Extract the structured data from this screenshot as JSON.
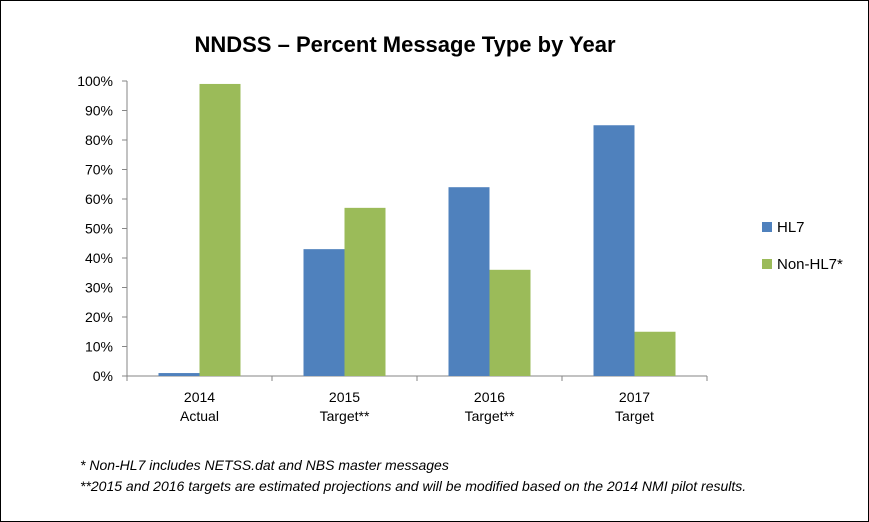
{
  "chart_data": {
    "type": "bar",
    "title": "NNDSS – Percent Message Type by Year",
    "categories": [
      [
        "2014",
        "Actual"
      ],
      [
        "2015",
        "Target**"
      ],
      [
        "2016",
        "Target**"
      ],
      [
        "2017",
        "Target"
      ]
    ],
    "series": [
      {
        "name": "HL7",
        "color": "#4f81bd",
        "values": [
          1,
          43,
          64,
          85
        ]
      },
      {
        "name": "Non-HL7*",
        "color": "#9bbb59",
        "values": [
          99,
          57,
          36,
          15
        ]
      }
    ],
    "ylim": [
      0,
      100
    ],
    "yticks": [
      "0%",
      "10%",
      "20%",
      "30%",
      "40%",
      "50%",
      "60%",
      "70%",
      "80%",
      "90%",
      "100%"
    ],
    "grid": false,
    "legend": "right"
  },
  "footnotes": {
    "note1": "* Non-HL7 includes NETSS.dat and NBS master messages",
    "note2": "**2015 and 2016 targets are estimated projections and will be modified based on the 2014 NMI pilot results."
  }
}
